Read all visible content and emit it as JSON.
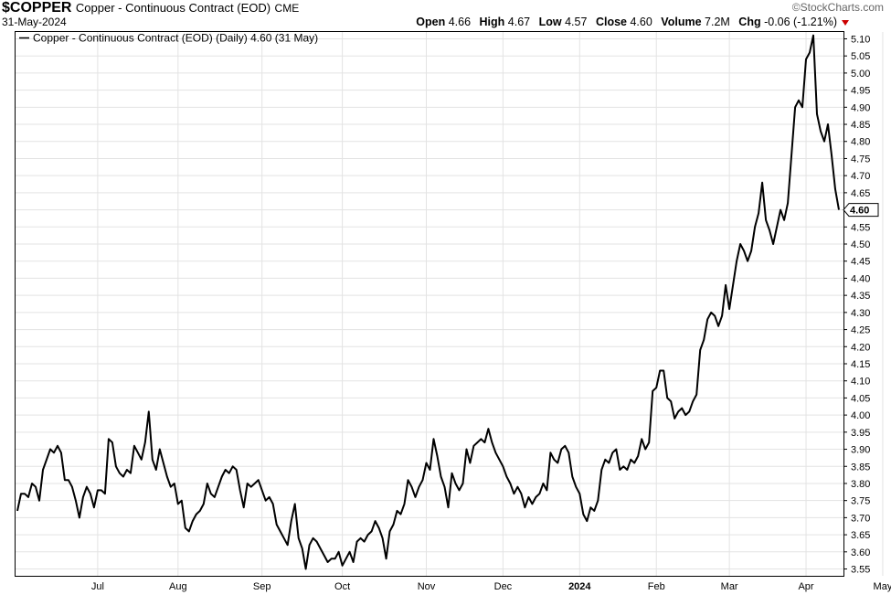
{
  "header": {
    "symbol": "$COPPER",
    "name": "Copper - Continuous Contract (EOD)",
    "exchange": "CME",
    "date": "31-May-2024",
    "watermark": "©StockCharts.com",
    "open_label": "Open",
    "open": "4.66",
    "high_label": "High",
    "high": "4.67",
    "low_label": "Low",
    "low": "4.57",
    "close_label": "Close",
    "close": "4.60",
    "volume_label": "Volume",
    "volume": "7.2M",
    "chg_label": "Chg",
    "chg": "-0.06 (-1.21%)",
    "chg_color": "#cc0000"
  },
  "chart_data": {
    "type": "line",
    "legend": "Copper - Continuous Contract (EOD) (Daily) 4.60 (31 May)",
    "last_value_label": "4.60",
    "ylim": [
      3.53,
      5.12
    ],
    "y_ticks": [
      "5.10",
      "5.05",
      "5.00",
      "4.95",
      "4.90",
      "4.85",
      "4.80",
      "4.75",
      "4.70",
      "4.65",
      "4.60",
      "4.55",
      "4.50",
      "4.45",
      "4.40",
      "4.35",
      "4.30",
      "4.25",
      "4.20",
      "4.15",
      "4.10",
      "4.05",
      "4.00",
      "3.95",
      "3.90",
      "3.85",
      "3.80",
      "3.75",
      "3.70",
      "3.65",
      "3.60",
      "3.55"
    ],
    "x_ticks": [
      {
        "label": "Jul",
        "day": 22
      },
      {
        "label": "Aug",
        "day": 44
      },
      {
        "label": "Sep",
        "day": 67
      },
      {
        "label": "Oct",
        "day": 89
      },
      {
        "label": "Nov",
        "day": 112
      },
      {
        "label": "Dec",
        "day": 133
      },
      {
        "label": "2024",
        "day": 154,
        "bold": true
      },
      {
        "label": "Feb",
        "day": 175
      },
      {
        "label": "Mar",
        "day": 195
      },
      {
        "label": "Apr",
        "day": 216
      },
      {
        "label": "May",
        "day": 237
      }
    ],
    "series": [
      {
        "values": [
          3.72,
          3.77,
          3.77,
          3.76,
          3.8,
          3.79,
          3.75,
          3.84,
          3.87,
          3.9,
          3.89,
          3.91,
          3.89,
          3.81,
          3.81,
          3.79,
          3.75,
          3.7,
          3.76,
          3.79,
          3.77,
          3.73,
          3.78,
          3.78,
          3.77,
          3.93,
          3.92,
          3.85,
          3.83,
          3.82,
          3.84,
          3.83,
          3.91,
          3.89,
          3.87,
          3.92,
          4.01,
          3.87,
          3.84,
          3.9,
          3.86,
          3.82,
          3.79,
          3.8,
          3.74,
          3.75,
          3.67,
          3.66,
          3.69,
          3.71,
          3.72,
          3.74,
          3.8,
          3.77,
          3.76,
          3.79,
          3.82,
          3.84,
          3.83,
          3.85,
          3.84,
          3.78,
          3.73,
          3.8,
          3.79,
          3.8,
          3.81,
          3.78,
          3.75,
          3.76,
          3.74,
          3.68,
          3.66,
          3.64,
          3.62,
          3.69,
          3.74,
          3.64,
          3.61,
          3.55,
          3.62,
          3.64,
          3.63,
          3.61,
          3.59,
          3.57,
          3.58,
          3.58,
          3.6,
          3.56,
          3.58,
          3.6,
          3.57,
          3.63,
          3.64,
          3.63,
          3.65,
          3.66,
          3.69,
          3.67,
          3.64,
          3.58,
          3.66,
          3.68,
          3.72,
          3.71,
          3.74,
          3.81,
          3.79,
          3.76,
          3.79,
          3.81,
          3.86,
          3.84,
          3.93,
          3.88,
          3.82,
          3.79,
          3.73,
          3.83,
          3.8,
          3.78,
          3.8,
          3.9,
          3.86,
          3.91,
          3.92,
          3.93,
          3.92,
          3.96,
          3.92,
          3.89,
          3.87,
          3.85,
          3.82,
          3.8,
          3.77,
          3.79,
          3.77,
          3.73,
          3.76,
          3.74,
          3.76,
          3.77,
          3.8,
          3.78,
          3.89,
          3.87,
          3.86,
          3.9,
          3.91,
          3.89,
          3.82,
          3.79,
          3.77,
          3.71,
          3.69,
          3.73,
          3.72,
          3.75,
          3.84,
          3.87,
          3.86,
          3.89,
          3.9,
          3.84,
          3.85,
          3.84,
          3.87,
          3.86,
          3.88,
          3.93,
          3.9,
          3.92,
          4.07,
          4.08,
          4.13,
          4.13,
          4.05,
          4.04,
          3.99,
          4.01,
          4.02,
          4.0,
          4.01,
          4.04,
          4.06,
          4.19,
          4.22,
          4.28,
          4.3,
          4.29,
          4.26,
          4.29,
          4.38,
          4.31,
          4.38,
          4.45,
          4.5,
          4.48,
          4.45,
          4.48,
          4.55,
          4.59,
          4.68,
          4.57,
          4.54,
          4.5,
          4.55,
          4.6,
          4.57,
          4.62,
          4.76,
          4.9,
          4.92,
          4.9,
          5.04,
          5.06,
          5.11,
          4.88,
          4.83,
          4.8,
          4.85,
          4.76,
          4.66,
          4.6
        ]
      }
    ]
  }
}
